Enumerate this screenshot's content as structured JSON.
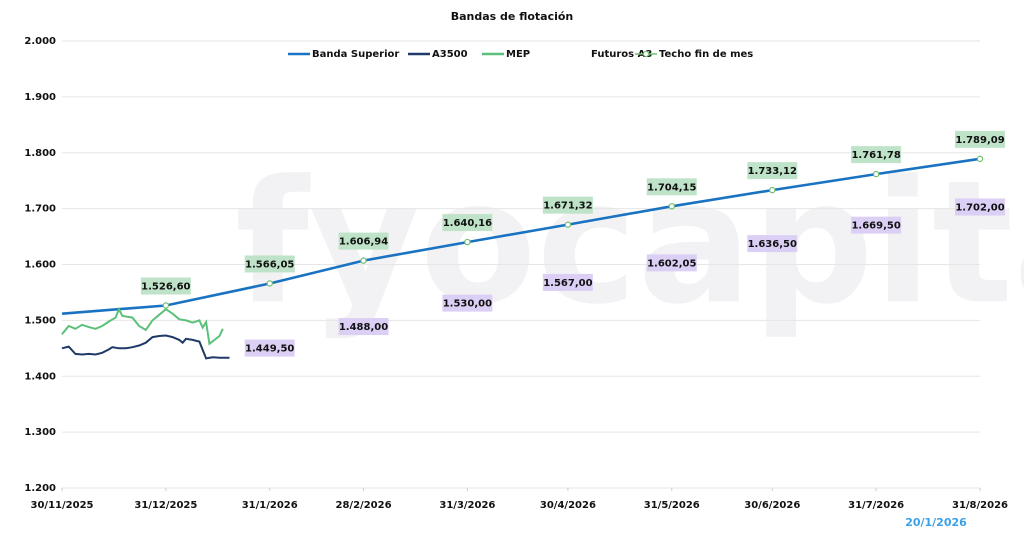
{
  "chart_data": {
    "type": "line",
    "title": "Bandas de flotación",
    "watermark": "fyocapital",
    "annotation": "20/1/2026",
    "xlim": [
      "2025-11-30",
      "2026-08-31"
    ],
    "xticks": [
      {
        "value": "2025-11-30",
        "label": "30/11/2025"
      },
      {
        "value": "2025-12-31",
        "label": "31/12/2025"
      },
      {
        "value": "2026-01-31",
        "label": "31/1/2026"
      },
      {
        "value": "2026-02-28",
        "label": "28/2/2026"
      },
      {
        "value": "2026-03-31",
        "label": "31/3/2026"
      },
      {
        "value": "2026-04-30",
        "label": "30/4/2026"
      },
      {
        "value": "2026-05-31",
        "label": "31/5/2026"
      },
      {
        "value": "2026-06-30",
        "label": "30/6/2026"
      },
      {
        "value": "2026-07-31",
        "label": "31/7/2026"
      },
      {
        "value": "2026-08-31",
        "label": "31/8/2026"
      }
    ],
    "ylim": [
      1200,
      2000
    ],
    "yticks": [
      {
        "value": 1200,
        "label": "1.200"
      },
      {
        "value": 1300,
        "label": "1.300"
      },
      {
        "value": 1400,
        "label": "1.400"
      },
      {
        "value": 1500,
        "label": "1.500"
      },
      {
        "value": 1600,
        "label": "1.600"
      },
      {
        "value": 1700,
        "label": "1.700"
      },
      {
        "value": 1800,
        "label": "1.800"
      },
      {
        "value": 1900,
        "label": "1.900"
      },
      {
        "value": 2000,
        "label": "2.000"
      }
    ],
    "grid": true,
    "legend": "top",
    "series": [
      {
        "name": "Banda Superior",
        "color": "#1a73c2",
        "x": [
          "2025-11-30",
          "2025-12-31",
          "2026-01-31",
          "2026-02-28",
          "2026-03-31",
          "2026-04-30",
          "2026-05-31",
          "2026-06-30",
          "2026-07-31",
          "2026-08-31"
        ],
        "values": [
          1512,
          1526.6,
          1566.05,
          1606.94,
          1640.16,
          1671.32,
          1704.15,
          1733.12,
          1761.78,
          1789.09
        ]
      },
      {
        "name": "A3500",
        "color": "#1f3a68",
        "x": [
          "2025-11-30",
          "2025-12-02",
          "2025-12-04",
          "2025-12-06",
          "2025-12-08",
          "2025-12-10",
          "2025-12-12",
          "2025-12-14",
          "2025-12-15",
          "2025-12-17",
          "2025-12-19",
          "2025-12-21",
          "2025-12-23",
          "2025-12-25",
          "2025-12-27",
          "2025-12-29",
          "2025-12-31",
          "2026-01-02",
          "2026-01-04",
          "2026-01-05",
          "2026-01-06",
          "2026-01-08",
          "2026-01-10",
          "2026-01-12",
          "2026-01-14",
          "2026-01-16",
          "2026-01-19"
        ],
        "values": [
          1450,
          1453,
          1440,
          1439,
          1440,
          1439,
          1442,
          1448,
          1452,
          1450,
          1450,
          1452,
          1455,
          1460,
          1470,
          1472,
          1473,
          1470,
          1465,
          1460,
          1467,
          1465,
          1462,
          1432,
          1434,
          1433,
          1433
        ]
      },
      {
        "name": "MEP",
        "color": "#5cc07a",
        "x": [
          "2025-11-30",
          "2025-12-02",
          "2025-12-04",
          "2025-12-06",
          "2025-12-08",
          "2025-12-10",
          "2025-12-12",
          "2025-12-14",
          "2025-12-16",
          "2025-12-17",
          "2025-12-18",
          "2025-12-21",
          "2025-12-23",
          "2025-12-25",
          "2025-12-27",
          "2025-12-29",
          "2025-12-31",
          "2026-01-02",
          "2026-01-04",
          "2026-01-06",
          "2026-01-08",
          "2026-01-10",
          "2026-01-11",
          "2026-01-12",
          "2026-01-13",
          "2026-01-16",
          "2026-01-17"
        ],
        "values": [
          1475,
          1490,
          1485,
          1492,
          1488,
          1485,
          1490,
          1498,
          1505,
          1520,
          1508,
          1505,
          1490,
          1483,
          1500,
          1510,
          1520,
          1512,
          1502,
          1500,
          1496,
          1500,
          1487,
          1497,
          1458,
          1472,
          1485
        ]
      },
      {
        "name": "Futuros A3",
        "color": "#dccff5",
        "show_line": false,
        "x": [
          "2026-01-31",
          "2026-02-28",
          "2026-03-31",
          "2026-04-30",
          "2026-05-31",
          "2026-06-30",
          "2026-07-31",
          "2026-08-31"
        ],
        "values": [
          1449.5,
          1488,
          1530,
          1567,
          1602.05,
          1636.5,
          1669.5,
          1702
        ],
        "value_labels": [
          "1.449,50",
          "1.488,00",
          "1.530,00",
          "1.567,00",
          "1.602,05",
          "1.636,50",
          "1.669,50",
          "1.702,00"
        ]
      },
      {
        "name": "Techo fin de mes",
        "color": "#6fbf6f",
        "show_line": false,
        "marker": true,
        "label_color": "#bfe3c8",
        "x": [
          "2025-12-31",
          "2026-01-31",
          "2026-02-28",
          "2026-03-31",
          "2026-04-30",
          "2026-05-31",
          "2026-06-30",
          "2026-07-31",
          "2026-08-31"
        ],
        "values": [
          1526.6,
          1566.05,
          1606.94,
          1640.16,
          1671.32,
          1704.15,
          1733.12,
          1761.78,
          1789.09
        ],
        "value_labels": [
          "1.526,60",
          "1.566,05",
          "1.606,94",
          "1.640,16",
          "1.671,32",
          "1.704,15",
          "1.733,12",
          "1.761,78",
          "1.789,09"
        ]
      }
    ]
  }
}
